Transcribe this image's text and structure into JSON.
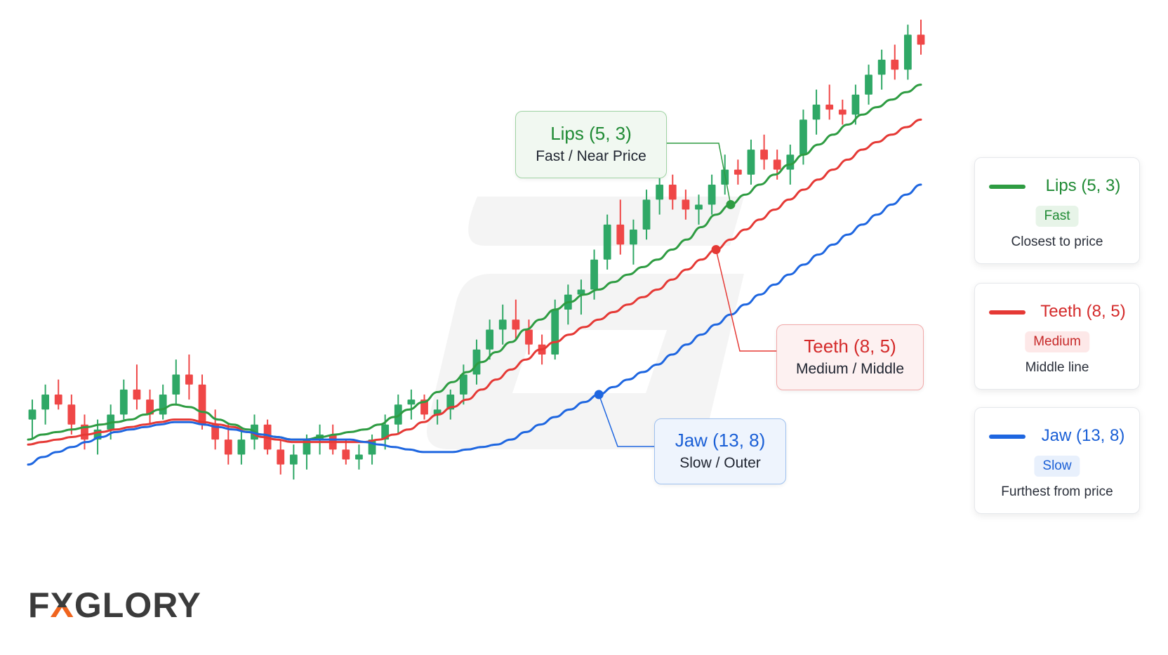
{
  "brand": {
    "logo_text": "FXGLORY"
  },
  "colors": {
    "bull": "#2fa866",
    "bear": "#ef4747",
    "lips": "#2e9c42",
    "teeth": "#e53935",
    "jaw": "#1e66e0",
    "logo_accent": "#f0641e"
  },
  "callouts": {
    "lips": {
      "title": "Lips (5, 3)",
      "subtitle": "Fast / Near Price"
    },
    "teeth": {
      "title": "Teeth (8, 5)",
      "subtitle": "Medium / Middle"
    },
    "jaw": {
      "title": "Jaw (13, 8)",
      "subtitle": "Slow / Outer"
    }
  },
  "legend": [
    {
      "key": "lips",
      "name": "Lips (5, 3)",
      "badge": "Fast",
      "description": "Closest to price"
    },
    {
      "key": "teeth",
      "name": "Teeth (8, 5)",
      "badge": "Medium",
      "description": "Middle line"
    },
    {
      "key": "jaw",
      "name": "Jaw (13, 8)",
      "badge": "Slow",
      "description": "Furthest from price"
    }
  ],
  "chart_data": {
    "type": "candlestick",
    "title": "",
    "xlabel": "",
    "ylabel": "",
    "grid": false,
    "ylim": [
      0,
      100
    ],
    "candles": [
      {
        "o": 20,
        "h": 24,
        "l": 16,
        "c": 22
      },
      {
        "o": 22,
        "h": 27,
        "l": 19,
        "c": 25
      },
      {
        "o": 25,
        "h": 28,
        "l": 22,
        "c": 23
      },
      {
        "o": 23,
        "h": 25,
        "l": 17,
        "c": 19
      },
      {
        "o": 19,
        "h": 21,
        "l": 14,
        "c": 16
      },
      {
        "o": 16,
        "h": 20,
        "l": 13,
        "c": 18
      },
      {
        "o": 18,
        "h": 23,
        "l": 16,
        "c": 21
      },
      {
        "o": 21,
        "h": 28,
        "l": 20,
        "c": 26
      },
      {
        "o": 26,
        "h": 31,
        "l": 22,
        "c": 24
      },
      {
        "o": 24,
        "h": 26,
        "l": 19,
        "c": 21
      },
      {
        "o": 21,
        "h": 27,
        "l": 20,
        "c": 25
      },
      {
        "o": 25,
        "h": 32,
        "l": 23,
        "c": 29
      },
      {
        "o": 29,
        "h": 33,
        "l": 24,
        "c": 27
      },
      {
        "o": 27,
        "h": 29,
        "l": 18,
        "c": 19
      },
      {
        "o": 19,
        "h": 22,
        "l": 14,
        "c": 16
      },
      {
        "o": 16,
        "h": 19,
        "l": 11,
        "c": 13
      },
      {
        "o": 13,
        "h": 18,
        "l": 11,
        "c": 16
      },
      {
        "o": 16,
        "h": 21,
        "l": 14,
        "c": 19
      },
      {
        "o": 19,
        "h": 20,
        "l": 13,
        "c": 14
      },
      {
        "o": 14,
        "h": 16,
        "l": 9,
        "c": 11
      },
      {
        "o": 11,
        "h": 15,
        "l": 8,
        "c": 13
      },
      {
        "o": 13,
        "h": 17,
        "l": 10,
        "c": 16
      },
      {
        "o": 16,
        "h": 19,
        "l": 13,
        "c": 17
      },
      {
        "o": 17,
        "h": 19,
        "l": 13,
        "c": 14
      },
      {
        "o": 14,
        "h": 16,
        "l": 11,
        "c": 12
      },
      {
        "o": 12,
        "h": 15,
        "l": 10,
        "c": 13
      },
      {
        "o": 13,
        "h": 17,
        "l": 11,
        "c": 16
      },
      {
        "o": 16,
        "h": 21,
        "l": 14,
        "c": 19
      },
      {
        "o": 19,
        "h": 25,
        "l": 17,
        "c": 23
      },
      {
        "o": 23,
        "h": 26,
        "l": 20,
        "c": 24
      },
      {
        "o": 24,
        "h": 25,
        "l": 20,
        "c": 21
      },
      {
        "o": 21,
        "h": 24,
        "l": 19,
        "c": 22
      },
      {
        "o": 22,
        "h": 26,
        "l": 20,
        "c": 25
      },
      {
        "o": 25,
        "h": 31,
        "l": 23,
        "c": 29
      },
      {
        "o": 29,
        "h": 36,
        "l": 27,
        "c": 34
      },
      {
        "o": 34,
        "h": 40,
        "l": 32,
        "c": 38
      },
      {
        "o": 38,
        "h": 43,
        "l": 35,
        "c": 40
      },
      {
        "o": 40,
        "h": 44,
        "l": 36,
        "c": 38
      },
      {
        "o": 38,
        "h": 40,
        "l": 33,
        "c": 35
      },
      {
        "o": 35,
        "h": 37,
        "l": 31,
        "c": 33
      },
      {
        "o": 33,
        "h": 44,
        "l": 32,
        "c": 42
      },
      {
        "o": 42,
        "h": 47,
        "l": 39,
        "c": 45
      },
      {
        "o": 45,
        "h": 48,
        "l": 41,
        "c": 46
      },
      {
        "o": 46,
        "h": 54,
        "l": 44,
        "c": 52
      },
      {
        "o": 52,
        "h": 61,
        "l": 50,
        "c": 59
      },
      {
        "o": 59,
        "h": 64,
        "l": 53,
        "c": 55
      },
      {
        "o": 55,
        "h": 60,
        "l": 51,
        "c": 58
      },
      {
        "o": 58,
        "h": 66,
        "l": 56,
        "c": 64
      },
      {
        "o": 64,
        "h": 70,
        "l": 61,
        "c": 67
      },
      {
        "o": 67,
        "h": 69,
        "l": 62,
        "c": 64
      },
      {
        "o": 64,
        "h": 66,
        "l": 60,
        "c": 62
      },
      {
        "o": 62,
        "h": 65,
        "l": 59,
        "c": 63
      },
      {
        "o": 63,
        "h": 69,
        "l": 61,
        "c": 67
      },
      {
        "o": 67,
        "h": 73,
        "l": 65,
        "c": 70
      },
      {
        "o": 70,
        "h": 72,
        "l": 67,
        "c": 69
      },
      {
        "o": 69,
        "h": 76,
        "l": 67,
        "c": 74
      },
      {
        "o": 74,
        "h": 77,
        "l": 70,
        "c": 72
      },
      {
        "o": 72,
        "h": 74,
        "l": 68,
        "c": 70
      },
      {
        "o": 70,
        "h": 75,
        "l": 67,
        "c": 73
      },
      {
        "o": 73,
        "h": 82,
        "l": 71,
        "c": 80
      },
      {
        "o": 80,
        "h": 86,
        "l": 77,
        "c": 83
      },
      {
        "o": 83,
        "h": 87,
        "l": 80,
        "c": 82
      },
      {
        "o": 82,
        "h": 84,
        "l": 79,
        "c": 81
      },
      {
        "o": 81,
        "h": 87,
        "l": 79,
        "c": 85
      },
      {
        "o": 85,
        "h": 91,
        "l": 83,
        "c": 89
      },
      {
        "o": 89,
        "h": 94,
        "l": 86,
        "c": 92
      },
      {
        "o": 92,
        "h": 95,
        "l": 88,
        "c": 90
      },
      {
        "o": 90,
        "h": 99,
        "l": 88,
        "c": 97
      },
      {
        "o": 97,
        "h": 100,
        "l": 93,
        "c": 95
      }
    ],
    "series": [
      {
        "name": "Lips (5, 3)",
        "key": "lips",
        "values": [
          16,
          17,
          17.5,
          18,
          18.5,
          19,
          19.5,
          20,
          21,
          22,
          23,
          22.5,
          21.5,
          20,
          19,
          18,
          17,
          16.5,
          16,
          16,
          16.5,
          17,
          17.5,
          18,
          19,
          20.5,
          22,
          23.5,
          25.5,
          27.5,
          29.5,
          31.5,
          33.5,
          35.5,
          38,
          40,
          42,
          43.5,
          45,
          46,
          47.5,
          49,
          50.5,
          52,
          54,
          56,
          58.5,
          61,
          63,
          65,
          67,
          69,
          71,
          73,
          75,
          77,
          79,
          81,
          82.5,
          84,
          85.5,
          87
        ]
      },
      {
        "name": "Teeth (8, 5)",
        "key": "teeth",
        "values": [
          15,
          15.5,
          16,
          16.5,
          17,
          17.5,
          18,
          18.5,
          19,
          19.5,
          20,
          20,
          19.5,
          19,
          18.5,
          17.5,
          16.5,
          16,
          15.5,
          15.5,
          15.5,
          15.5,
          15.5,
          15.5,
          16,
          17,
          18,
          19.5,
          21,
          22.5,
          24,
          26,
          28,
          30,
          32,
          34,
          35.5,
          37,
          38.5,
          40,
          41.5,
          43,
          44.5,
          46,
          48,
          50,
          52,
          54,
          56,
          58,
          60,
          62,
          64,
          66,
          68,
          70,
          72,
          74,
          75.5,
          77,
          78.5,
          80
        ]
      },
      {
        "name": "Jaw (13, 8)",
        "key": "jaw",
        "values": [
          11,
          12.5,
          13.5,
          14.5,
          15.5,
          16.5,
          17.5,
          18,
          18.5,
          19,
          19.5,
          19.5,
          19,
          18.5,
          18,
          17.5,
          17,
          16.5,
          16,
          16,
          16,
          16,
          16,
          15.5,
          15,
          14.5,
          14,
          13.5,
          13.5,
          13.5,
          14,
          14.5,
          15,
          16,
          17.5,
          19,
          20.5,
          22,
          23.5,
          25,
          26.5,
          28,
          29.5,
          31,
          33,
          35,
          37,
          39,
          41,
          43,
          45,
          47,
          49,
          51,
          53,
          55,
          57,
          59,
          61,
          63,
          65,
          67
        ]
      }
    ]
  }
}
